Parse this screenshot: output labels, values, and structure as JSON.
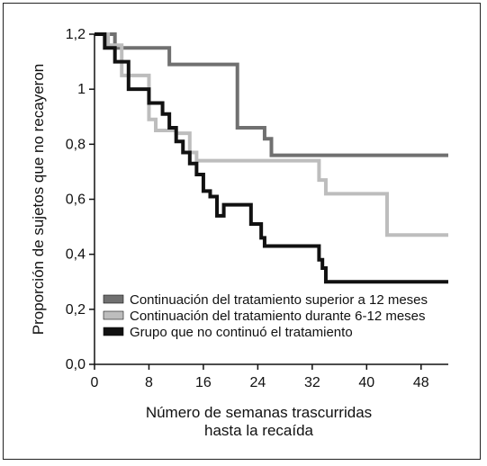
{
  "chart_data": {
    "type": "line",
    "step": true,
    "ylabel": "Proporción de sujetos que no recayeron",
    "xlabel_lines": [
      "Número de semanas trascurridas",
      "hasta la recaída"
    ],
    "xlim": [
      0,
      52
    ],
    "ylim": [
      0,
      1.2
    ],
    "xticks": [
      0,
      8,
      16,
      24,
      32,
      40,
      48
    ],
    "xtick_labels": [
      "0",
      "8",
      "16",
      "24",
      "32",
      "40",
      "48"
    ],
    "yticks": [
      0,
      0.2,
      0.4,
      0.6,
      0.8,
      1.0,
      1.2
    ],
    "ytick_labels": [
      "0,0",
      "0,2",
      "0,4",
      "0,6",
      "0,8",
      "1",
      "1,2"
    ],
    "legend_position": "lower-left",
    "series": [
      {
        "name": "Continuación del tratamiento superior a 12 meses",
        "color": "#707070",
        "x": [
          0,
          2,
          3,
          11,
          21,
          25,
          26,
          52
        ],
        "y": [
          1.2,
          1.2,
          1.15,
          1.09,
          0.86,
          0.82,
          0.76,
          0.76
        ]
      },
      {
        "name": "Continuación del tratamiento durante 6-12 meses",
        "color": "#bdbdbd",
        "x": [
          0,
          2,
          4,
          8,
          9,
          12,
          14,
          15,
          33,
          34,
          43,
          52
        ],
        "y": [
          1.2,
          1.16,
          1.05,
          0.89,
          0.85,
          0.84,
          0.77,
          0.74,
          0.67,
          0.62,
          0.47,
          0.47
        ]
      },
      {
        "name": "Grupo que no continuó el tratamiento",
        "color": "#111111",
        "x": [
          0,
          1.5,
          3,
          5,
          8,
          10,
          11,
          12,
          13,
          14,
          15,
          16,
          17,
          18,
          19,
          23,
          24.5,
          25,
          32,
          33,
          33.5,
          34,
          52
        ],
        "y": [
          1.2,
          1.15,
          1.1,
          1.0,
          0.95,
          0.91,
          0.86,
          0.81,
          0.77,
          0.73,
          0.69,
          0.63,
          0.61,
          0.54,
          0.58,
          0.51,
          0.46,
          0.43,
          0.43,
          0.38,
          0.35,
          0.3,
          0.3
        ]
      }
    ]
  }
}
